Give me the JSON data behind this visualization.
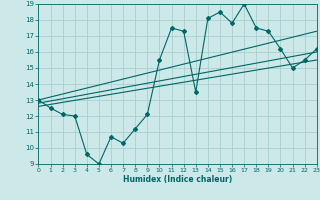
{
  "xlabel": "Humidex (Indice chaleur)",
  "bg_color": "#cce8e8",
  "grid_color": "#aad0d0",
  "line_color": "#006666",
  "x_min": 0,
  "x_max": 23,
  "y_min": 9,
  "y_max": 19,
  "x_ticks": [
    0,
    1,
    2,
    3,
    4,
    5,
    6,
    7,
    8,
    9,
    10,
    11,
    12,
    13,
    14,
    15,
    16,
    17,
    18,
    19,
    20,
    21,
    22,
    23
  ],
  "y_ticks": [
    9,
    10,
    11,
    12,
    13,
    14,
    15,
    16,
    17,
    18,
    19
  ],
  "line1_x": [
    0,
    1,
    2,
    3,
    4,
    5,
    6,
    7,
    8,
    9,
    10,
    11,
    12,
    13,
    14,
    15,
    16,
    17,
    18,
    19,
    20,
    21,
    22,
    23
  ],
  "line1_y": [
    13.0,
    12.5,
    12.1,
    12.0,
    9.6,
    9.0,
    10.7,
    10.3,
    11.2,
    12.1,
    15.5,
    17.5,
    17.3,
    13.5,
    18.1,
    18.5,
    17.8,
    19.0,
    17.5,
    17.3,
    16.2,
    15.0,
    15.5,
    16.2
  ],
  "line2_x": [
    0,
    23
  ],
  "line2_y": [
    13.0,
    17.3
  ],
  "line3_x": [
    0,
    23
  ],
  "line3_y": [
    12.8,
    16.0
  ],
  "line4_x": [
    0,
    23
  ],
  "line4_y": [
    12.6,
    15.5
  ]
}
